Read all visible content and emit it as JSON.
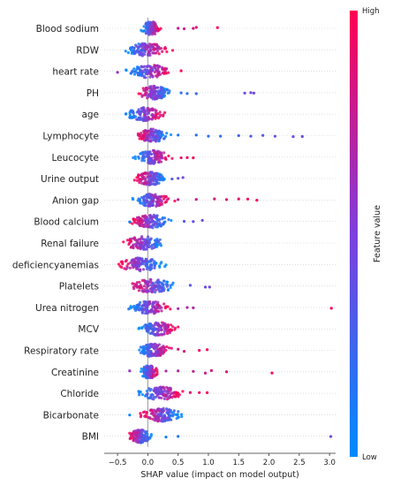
{
  "chart_data": {
    "type": "scatter",
    "subtype": "shap-beeswarm",
    "xlabel": "SHAP value (impact on model output)",
    "xlim": [
      -0.72,
      3.1
    ],
    "xticks": [
      -0.5,
      0.0,
      0.5,
      1.0,
      1.5,
      2.0,
      2.5,
      3.0
    ],
    "xtick_labels": [
      "−0.5",
      "0.0",
      "0.5",
      "1.0",
      "1.5",
      "2.0",
      "2.5",
      "3.0"
    ],
    "colorbar": {
      "title": "Feature value",
      "high_label": "High",
      "low_label": "Low",
      "high_color": "#ff0052",
      "low_color": "#008bfb"
    },
    "features": [
      {
        "name": "Blood sodium",
        "range": [
          -0.15,
          1.15
        ],
        "core": [
          -0.1,
          0.2
        ],
        "low_side": "left",
        "outliers": [
          0.5,
          0.6,
          0.75,
          0.8,
          1.15
        ]
      },
      {
        "name": "RDW",
        "range": [
          -0.38,
          0.52
        ],
        "core": [
          -0.35,
          0.3
        ],
        "low_side": "left",
        "outliers": []
      },
      {
        "name": "heart rate",
        "range": [
          -0.55,
          0.6
        ],
        "core": [
          -0.3,
          0.35
        ],
        "low_side": "left",
        "outliers": [
          -0.5,
          0.55
        ]
      },
      {
        "name": "PH",
        "range": [
          -0.2,
          1.78
        ],
        "core": [
          -0.15,
          0.35
        ],
        "low_side": "right",
        "outliers": [
          0.55,
          0.65,
          0.8,
          1.6,
          1.7,
          1.75
        ]
      },
      {
        "name": "age",
        "range": [
          -0.38,
          0.28
        ],
        "core": [
          -0.35,
          0.25
        ],
        "low_side": "left",
        "outliers": []
      },
      {
        "name": "Lymphocyte",
        "range": [
          -0.2,
          2.6
        ],
        "core": [
          -0.15,
          0.3
        ],
        "low_side": "right",
        "outliers": [
          0.5,
          0.8,
          1.0,
          1.2,
          1.5,
          1.7,
          1.9,
          2.1,
          2.4,
          2.55
        ]
      },
      {
        "name": "Leucocyte",
        "range": [
          -0.25,
          0.8
        ],
        "core": [
          -0.2,
          0.35
        ],
        "low_side": "left",
        "outliers": [
          0.55,
          0.65,
          0.75
        ]
      },
      {
        "name": "Urine output",
        "range": [
          -0.22,
          0.6
        ],
        "core": [
          -0.2,
          0.3
        ],
        "low_side": "right",
        "outliers": [
          0.4,
          0.5,
          0.58
        ]
      },
      {
        "name": "Anion gap",
        "range": [
          -0.25,
          1.85
        ],
        "core": [
          -0.2,
          0.35
        ],
        "low_side": "left",
        "outliers": [
          0.5,
          0.8,
          1.1,
          1.3,
          1.5,
          1.65,
          1.8
        ]
      },
      {
        "name": "Blood calcium",
        "range": [
          -0.35,
          0.95
        ],
        "core": [
          -0.25,
          0.35
        ],
        "low_side": "right",
        "outliers": [
          -0.3,
          0.6,
          0.75,
          0.9
        ]
      },
      {
        "name": "Renal failure",
        "range": [
          -0.42,
          0.3
        ],
        "core": [
          -0.4,
          0.25
        ],
        "low_side": "right",
        "outliers": []
      },
      {
        "name": "deficiencyanemias",
        "range": [
          -0.55,
          0.3
        ],
        "core": [
          -0.5,
          0.25
        ],
        "low_side": "right",
        "outliers": []
      },
      {
        "name": "Platelets",
        "range": [
          -0.4,
          1.05
        ],
        "core": [
          -0.3,
          0.45
        ],
        "low_side": "right",
        "outliers": [
          0.7,
          0.95,
          1.02
        ]
      },
      {
        "name": "Urea nitrogen",
        "range": [
          -0.35,
          3.05
        ],
        "core": [
          -0.3,
          0.35
        ],
        "low_side": "left",
        "outliers": [
          0.5,
          0.65,
          0.75,
          3.03
        ]
      },
      {
        "name": "MCV",
        "range": [
          -0.15,
          0.5
        ],
        "core": [
          -0.12,
          0.45
        ],
        "low_side": "left",
        "outliers": []
      },
      {
        "name": "Respiratory rate",
        "range": [
          -0.2,
          1.0
        ],
        "core": [
          -0.15,
          0.35
        ],
        "low_side": "left",
        "outliers": [
          0.5,
          0.6,
          0.85,
          0.98
        ]
      },
      {
        "name": "Creatinine",
        "range": [
          -0.35,
          2.05
        ],
        "core": [
          -0.1,
          0.15
        ],
        "low_side": "left",
        "outliers": [
          -0.3,
          0.3,
          0.5,
          0.75,
          0.95,
          1.05,
          1.3,
          2.05
        ]
      },
      {
        "name": "Chloride",
        "range": [
          -0.2,
          1.0
        ],
        "core": [
          -0.15,
          0.55
        ],
        "low_side": "left",
        "outliers": [
          0.7,
          0.85,
          0.98
        ]
      },
      {
        "name": "Bicarbonate",
        "range": [
          -0.35,
          0.58
        ],
        "core": [
          -0.1,
          0.55
        ],
        "low_side": "right",
        "outliers": [
          -0.3
        ]
      },
      {
        "name": "BMI",
        "range": [
          -0.35,
          3.05
        ],
        "core": [
          -0.3,
          0.05
        ],
        "low_side": "right",
        "outliers": [
          0.3,
          0.5,
          3.02
        ]
      }
    ]
  }
}
